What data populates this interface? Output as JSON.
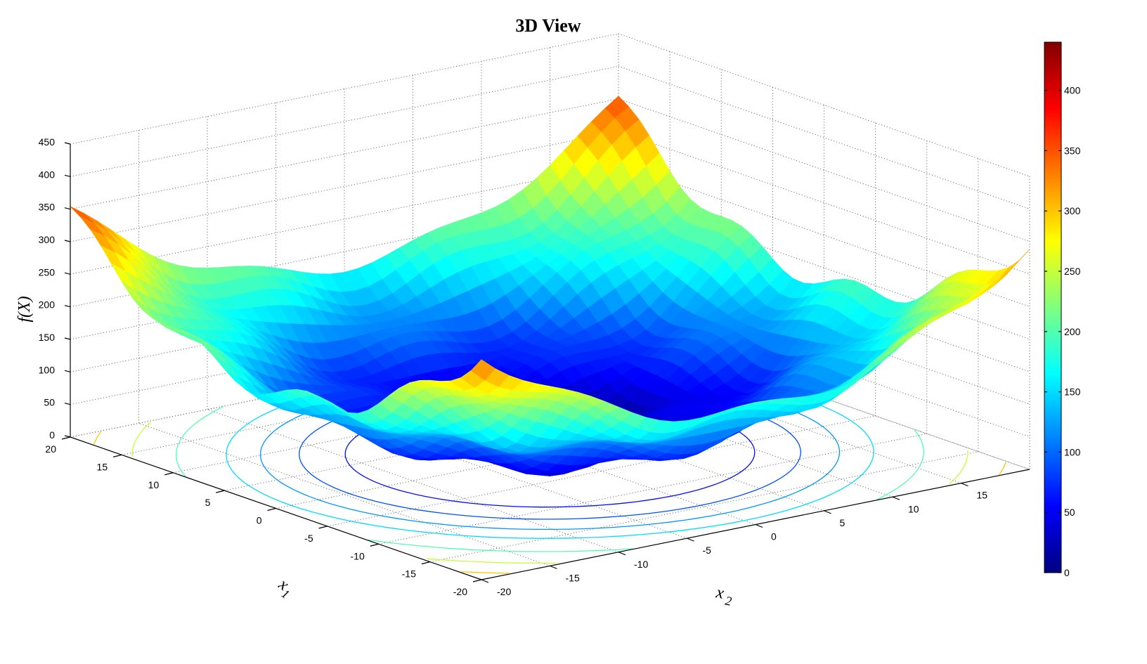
{
  "chart_data": {
    "type": "surface",
    "title": "3D View",
    "xlabel": "x1",
    "ylabel": "x2",
    "zlabel": "f(X)",
    "x1_ticks": [
      "-20",
      "-15",
      "-10",
      "-5",
      "0",
      "5",
      "10",
      "15",
      "20"
    ],
    "x2_ticks": [
      "-20",
      "-15",
      "-10",
      "-5",
      "0",
      "5",
      "10",
      "15"
    ],
    "z_ticks": [
      "0",
      "50",
      "100",
      "150",
      "200",
      "250",
      "300",
      "350",
      "400",
      "450"
    ],
    "xlim": [
      -20,
      20
    ],
    "ylim": [
      -20,
      20
    ],
    "zlim": [
      0,
      450
    ],
    "grid": true,
    "colormap": "jet",
    "colorbar": {
      "range": [
        0,
        440
      ],
      "ticks": [
        "0",
        "50",
        "100",
        "150",
        "200",
        "250",
        "300",
        "350",
        "400"
      ],
      "placement": "right"
    },
    "contours_on_floor": true,
    "approx_shape": "bowl-shaped surface, minimum near center (~0), rising to ~440 at the rim, with contour lines projected on the base plane"
  }
}
